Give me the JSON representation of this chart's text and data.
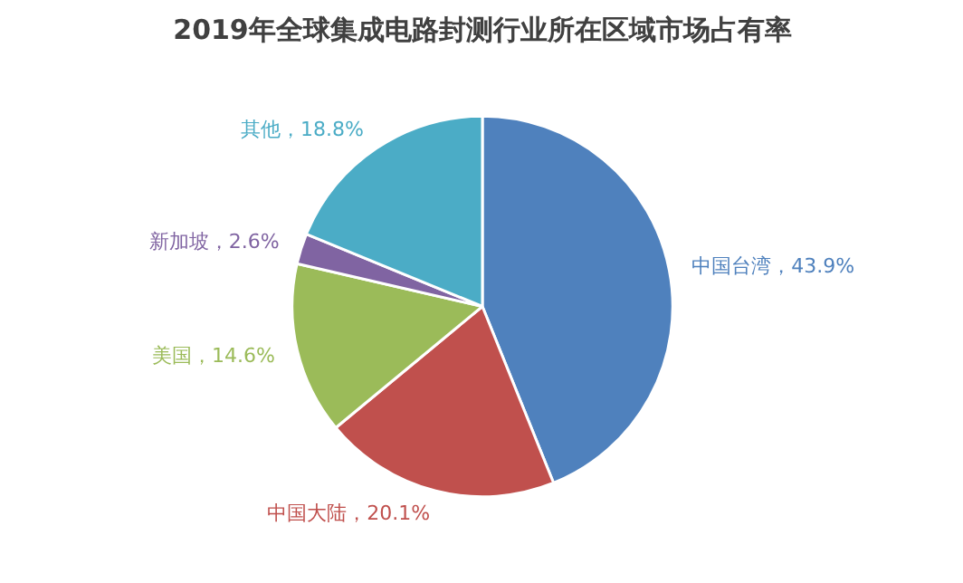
{
  "chart_data": {
    "type": "pie",
    "title": "2019年全球集成电路封测行业所在区域市场占有率",
    "categories": [
      "中国台湾",
      "中国大陆",
      "美国",
      "新加坡",
      "其他"
    ],
    "values": [
      43.9,
      20.1,
      14.6,
      2.6,
      18.8
    ],
    "colors": [
      "#4f81bd",
      "#c0504d",
      "#9bbb59",
      "#8064a2",
      "#4bacc6"
    ],
    "value_labels": [
      "，43.9%",
      "，20.1%",
      "，14.6%",
      "，2.6%",
      "，18.8%"
    ]
  }
}
